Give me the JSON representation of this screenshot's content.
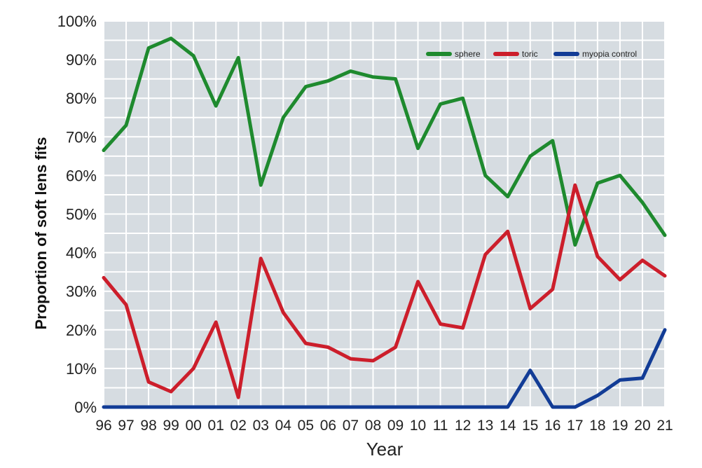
{
  "chart_data": {
    "type": "line",
    "title": "",
    "xlabel": "Year",
    "ylabel": "Proportion of soft lens fits",
    "categories": [
      "96",
      "97",
      "98",
      "99",
      "00",
      "01",
      "02",
      "03",
      "04",
      "05",
      "06",
      "07",
      "08",
      "09",
      "10",
      "11",
      "12",
      "13",
      "14",
      "15",
      "16",
      "17",
      "18",
      "19",
      "20",
      "21"
    ],
    "y_ticks": [
      "0%",
      "10%",
      "20%",
      "30%",
      "40%",
      "50%",
      "60%",
      "70%",
      "80%",
      "90%",
      "100%"
    ],
    "ylim": [
      0,
      100
    ],
    "grid": true,
    "legend_position": "top-right",
    "background_color": "#d6dce1",
    "series": [
      {
        "name": "sphere",
        "color": "#1e8a2e",
        "values": [
          66.5,
          73,
          93,
          95.5,
          91,
          78,
          90.5,
          57.5,
          75,
          83,
          84.5,
          87,
          85.5,
          85,
          67,
          78.5,
          80,
          60,
          54.5,
          65,
          69,
          42,
          58,
          60,
          53,
          44.5
        ]
      },
      {
        "name": "toric",
        "color": "#cc1e2b",
        "values": [
          33.5,
          26.5,
          6.5,
          4,
          10,
          22,
          2.5,
          38.5,
          24.5,
          16.5,
          15.5,
          12.5,
          12,
          15.5,
          32.5,
          21.5,
          20.5,
          39.5,
          45.5,
          25.5,
          30.5,
          57.5,
          39,
          33,
          38,
          34
        ]
      },
      {
        "name": "myopia control",
        "color": "#123c96",
        "values": [
          0,
          0,
          0,
          0,
          0,
          0,
          0,
          0,
          0,
          0,
          0,
          0,
          0,
          0,
          0,
          0,
          0,
          0,
          0,
          9.5,
          0,
          0,
          3,
          7,
          7.5,
          20
        ]
      }
    ]
  }
}
